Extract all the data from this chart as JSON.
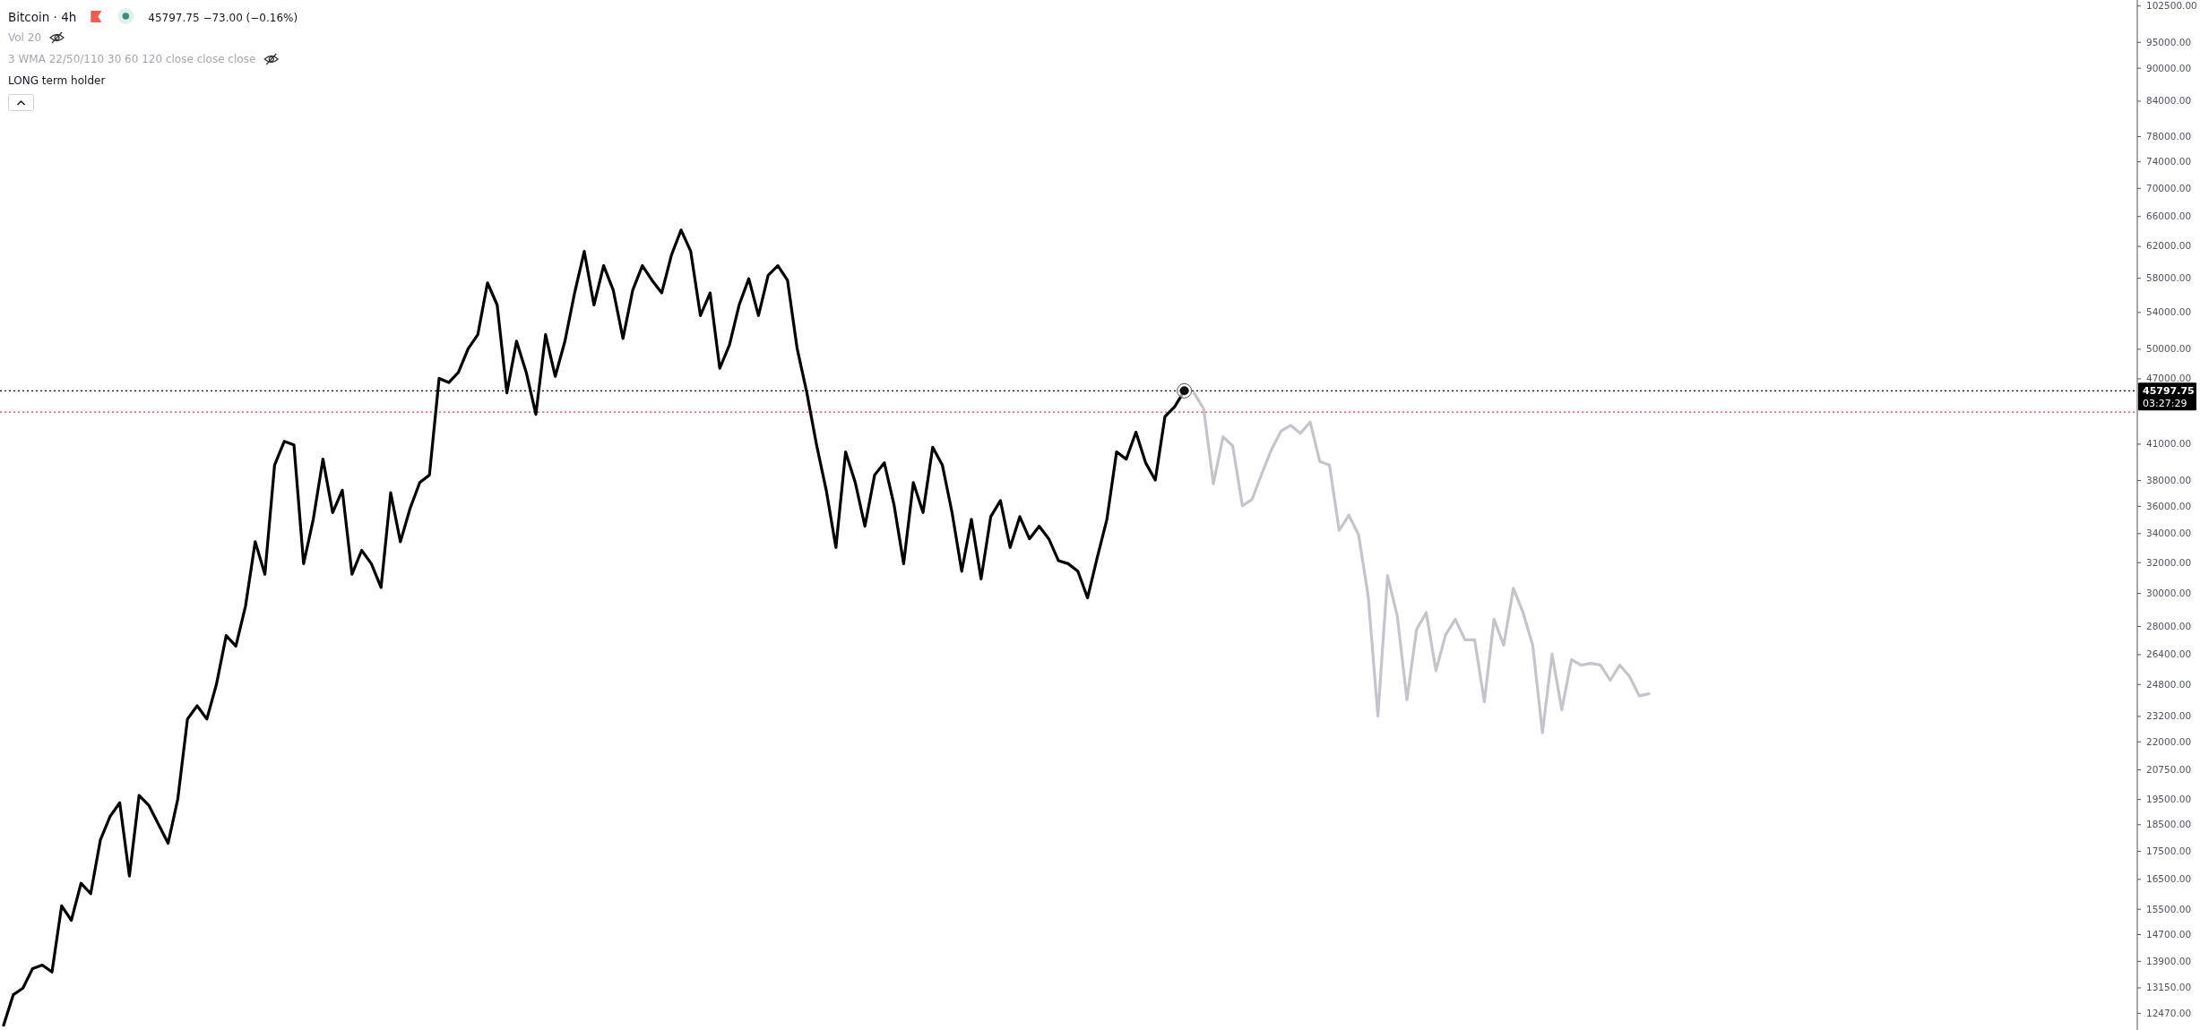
{
  "chart_data": {
    "type": "line",
    "title": "Bitcoin · 4h",
    "subtitle": "45797.75 −73.00 (−0.16%)",
    "annotations": [
      "Vol 20",
      "3 WMA 22/50/110 30 60 120 close close close",
      "LONG term holder",
      "03:27:29"
    ],
    "categories": [
      null,
      null,
      null,
      null,
      null,
      null,
      null,
      null,
      null,
      null,
      null,
      null,
      null,
      null,
      null,
      null,
      null,
      null,
      null,
      null,
      null,
      null,
      null,
      null,
      null,
      null,
      null,
      null,
      null,
      null,
      null,
      null,
      null,
      null,
      null,
      null,
      null,
      null,
      null,
      null,
      null,
      null,
      null,
      null,
      null,
      null,
      null,
      null,
      null,
      null,
      null,
      null,
      null,
      null,
      null,
      null,
      null,
      null,
      null,
      null,
      null,
      null,
      null,
      null,
      null,
      null,
      null,
      null,
      null,
      null,
      null,
      null,
      null,
      null,
      null,
      null,
      null,
      null,
      null,
      null,
      null,
      null,
      null,
      null,
      null,
      null,
      null,
      null,
      null,
      null,
      null,
      null,
      null,
      null,
      null,
      null,
      null,
      null,
      null,
      null,
      null,
      null,
      null,
      null,
      null,
      null,
      null,
      null,
      null,
      null,
      null,
      null,
      null,
      null,
      null,
      null,
      null,
      null,
      null,
      null,
      null,
      null,
      null,
      null,
      null,
      null,
      null,
      null,
      null,
      null,
      null,
      null,
      null,
      null,
      null,
      null,
      null,
      null,
      null,
      null,
      null,
      null,
      null,
      null,
      null,
      null,
      null,
      null,
      null,
      null,
      null,
      null,
      null,
      null,
      null,
      null,
      null,
      null,
      null,
      null,
      null,
      null,
      null,
      null,
      null,
      null,
      null,
      null,
      null,
      null,
      null
    ],
    "series": [
      {
        "type": "line",
        "color": "#000000",
        "values": [
          12150,
          12950,
          13130,
          13680,
          13780,
          13580,
          15600,
          15130,
          16350,
          16000,
          17900,
          18800,
          19350,
          16600,
          19650,
          19250,
          18500,
          17780,
          19500,
          23050,
          23700,
          23050,
          24800,
          27450,
          26850,
          29200,
          33400,
          31200,
          39200,
          41200,
          40900,
          31900,
          35000,
          39700,
          35500,
          37200,
          31200,
          32800,
          31900,
          30350,
          37000,
          33400,
          35800,
          37800,
          38400,
          47000,
          46600,
          47600,
          50000,
          51500,
          57400,
          54800,
          45600,
          50800,
          47600,
          43600,
          51500,
          47200,
          50800,
          56200,
          61300,
          54800,
          59500,
          56500,
          51100,
          56500,
          59500,
          57700,
          56200,
          60800,
          64100,
          61300,
          53600,
          56200,
          48000,
          50400,
          54800,
          57900,
          53600,
          58300,
          59500,
          57700,
          50000,
          45600,
          40900,
          37200,
          33000,
          40300,
          37800,
          34500,
          38400,
          39400,
          36100,
          31900,
          37800,
          35500,
          40700,
          39200,
          35500,
          31400,
          35000,
          30900,
          35200,
          36400,
          33000,
          35200,
          33600,
          34500,
          33600,
          32100,
          31900,
          31400,
          29700,
          32300,
          35000,
          40300,
          39700,
          42000,
          39400,
          38000,
          43400,
          44300,
          45797.75,
          null,
          null,
          null,
          null,
          null,
          null,
          null,
          null,
          null,
          null,
          null,
          null,
          null,
          null,
          null,
          null,
          null,
          null,
          null,
          null,
          null,
          null,
          null,
          null,
          null,
          null,
          null,
          null,
          null,
          null,
          null,
          null,
          null,
          null,
          null,
          null,
          null,
          null,
          null,
          null,
          null,
          null,
          null,
          null,
          null,
          null,
          null,
          null
        ]
      },
      {
        "type": "line",
        "color": "#c4c4cc",
        "values": [
          null,
          null,
          null,
          null,
          null,
          null,
          null,
          null,
          null,
          null,
          null,
          null,
          null,
          null,
          null,
          null,
          null,
          null,
          null,
          null,
          null,
          null,
          null,
          null,
          null,
          null,
          null,
          null,
          null,
          null,
          null,
          null,
          null,
          null,
          null,
          null,
          null,
          null,
          null,
          null,
          null,
          null,
          null,
          null,
          null,
          null,
          null,
          null,
          null,
          null,
          null,
          null,
          null,
          null,
          null,
          null,
          null,
          null,
          null,
          null,
          null,
          null,
          null,
          null,
          null,
          null,
          null,
          null,
          null,
          null,
          null,
          null,
          null,
          null,
          null,
          null,
          null,
          null,
          null,
          null,
          null,
          null,
          null,
          null,
          null,
          null,
          null,
          null,
          null,
          null,
          null,
          null,
          null,
          null,
          null,
          null,
          null,
          null,
          null,
          null,
          null,
          null,
          null,
          null,
          null,
          null,
          null,
          null,
          null,
          null,
          null,
          null,
          null,
          null,
          null,
          null,
          null,
          null,
          null,
          null,
          null,
          null,
          null,
          45600,
          44100,
          37700,
          41600,
          40800,
          36000,
          36500,
          38500,
          40500,
          42100,
          42600,
          41900,
          42900,
          39500,
          39200,
          34200,
          35300,
          33900,
          29800,
          23200,
          31100,
          28600,
          24000,
          27800,
          28800,
          25500,
          27500,
          28400,
          27200,
          27200,
          23900,
          28400,
          26900,
          30300,
          28800,
          26900,
          22400,
          26400,
          23500,
          26100,
          25800,
          25900,
          25800,
          25000,
          25800,
          25200,
          24200,
          24300
        ]
      }
    ],
    "ylim": [
      12030,
      103700
    ],
    "yticks": [
      {
        "value": 102500,
        "label": "102500.00"
      },
      {
        "value": 95000,
        "label": "95000.00"
      },
      {
        "value": 90000,
        "label": "90000.00"
      },
      {
        "value": 84000,
        "label": "84000.00"
      },
      {
        "value": 78000,
        "label": "78000.00"
      },
      {
        "value": 74000,
        "label": "74000.00"
      },
      {
        "value": 70000,
        "label": "70000.00"
      },
      {
        "value": 66000,
        "label": "66000.00"
      },
      {
        "value": 62000,
        "label": "62000.00"
      },
      {
        "value": 58000,
        "label": "58000.00"
      },
      {
        "value": 54000,
        "label": "54000.00"
      },
      {
        "value": 50000,
        "label": "50000.00"
      },
      {
        "value": 47000,
        "label": "47000.00"
      },
      {
        "value": 41000,
        "label": "41000.00"
      },
      {
        "value": 38000,
        "label": "38000.00"
      },
      {
        "value": 36000,
        "label": "36000.00"
      },
      {
        "value": 34000,
        "label": "34000.00"
      },
      {
        "value": 32000,
        "label": "32000.00"
      },
      {
        "value": 30000,
        "label": "30000.00"
      },
      {
        "value": 28000,
        "label": "28000.00"
      },
      {
        "value": 26400,
        "label": "26400.00"
      },
      {
        "value": 24800,
        "label": "24800.00"
      },
      {
        "value": 23200,
        "label": "23200.00"
      },
      {
        "value": 22000,
        "label": "22000.00"
      },
      {
        "value": 20750,
        "label": "20750.00"
      },
      {
        "value": 19500,
        "label": "19500.00"
      },
      {
        "value": 18500,
        "label": "18500.00"
      },
      {
        "value": 17500,
        "label": "17500.00"
      },
      {
        "value": 16500,
        "label": "16500.00"
      },
      {
        "value": 15500,
        "label": "15500.00"
      },
      {
        "value": 14700,
        "label": "14700.00"
      },
      {
        "value": 13900,
        "label": "13900.00"
      },
      {
        "value": 13150,
        "label": "13150.00"
      },
      {
        "value": 12470,
        "label": "12470.00"
      }
    ],
    "log": "y",
    "grid": false,
    "tick_labels": "y",
    "marker": "none",
    "line_style": "solid",
    "ref_lines": [
      {
        "axis": "y",
        "value": 45797.75,
        "label": "45797.75",
        "color": "#000000",
        "line_style": "dotted"
      },
      {
        "axis": "y",
        "value": 43800,
        "color": "#f23645",
        "line_style": "dotted"
      }
    ]
  }
}
